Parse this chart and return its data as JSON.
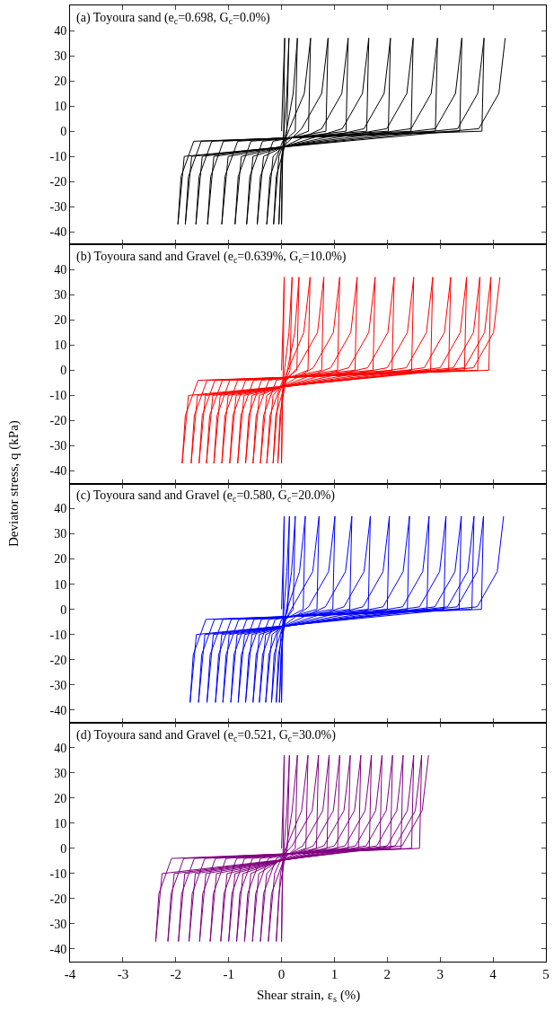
{
  "chart_data": [
    {
      "type": "line",
      "title": "(a) Toyoura sand (e$_{c}$=0.698, G$_{c}$=0.0%)",
      "xlim": [
        -4,
        5
      ],
      "xticks": [
        -4,
        -3,
        -2,
        -1,
        0,
        1,
        2,
        3,
        4,
        5
      ],
      "ylim": [
        -45,
        50
      ],
      "yticks": [
        -40,
        -30,
        -20,
        -10,
        0,
        10,
        20,
        30,
        40
      ],
      "tick_labels": "y",
      "series": [
        {
          "color": "#000000",
          "x": [
            0,
            0.03,
            0.06,
            0.04,
            0.02,
            0.01,
            0,
            0.02,
            0.05,
            0.1,
            0.14,
            0.1,
            0.05,
            -0.02,
            -0.05,
            0,
            0.1,
            0.22,
            0.3,
            0.26,
            0.1,
            -0.1,
            -0.15,
            -0.05,
            0.15,
            0.43,
            0.55,
            0.51,
            0.02,
            -0.22,
            -0.28,
            -0.16,
            0.38,
            0.76,
            0.88,
            0.84,
            -0.16,
            -0.4,
            -0.46,
            -0.34,
            0.76,
            1.14,
            1.26,
            1.22,
            -0.36,
            -0.6,
            -0.66,
            -0.54,
            1.15,
            1.53,
            1.65,
            1.61,
            -0.58,
            -0.82,
            -0.88,
            -0.76,
            1.56,
            1.94,
            2.06,
            2.02,
            -0.83,
            -1.07,
            -1.13,
            -1.01,
            1.99,
            2.37,
            2.49,
            2.45,
            -1.1,
            -1.34,
            -1.4,
            -1.28,
            2.45,
            2.83,
            2.95,
            2.91,
            -1.32,
            -1.56,
            -1.62,
            -1.5,
            2.91,
            3.29,
            3.41,
            3.37,
            -1.52,
            -1.76,
            -1.82,
            -1.7,
            3.33,
            3.71,
            3.83,
            3.79,
            -1.66,
            -1.9,
            -1.96,
            -1.84,
            3.73,
            4.11,
            4.23
          ],
          "values": [
            0,
            20,
            37,
            0,
            -10,
            -20,
            -37,
            -10,
            1,
            15,
            37,
            0,
            -4,
            -18,
            -37,
            -10,
            1,
            15,
            37,
            0,
            -3,
            -18,
            -37,
            -10,
            1,
            15,
            37,
            0,
            -4,
            -18,
            -37,
            -10,
            1,
            15,
            37,
            0,
            -4,
            -18,
            -37,
            -10,
            1,
            15,
            37,
            0,
            -4,
            -18,
            -37,
            -10,
            1,
            15,
            37,
            0,
            -4,
            -18,
            -37,
            -10,
            1,
            15,
            37,
            0,
            -4,
            -18,
            -37,
            -10,
            1,
            15,
            37,
            0,
            -4,
            -18,
            -37,
            -10,
            1,
            15,
            37,
            0,
            -4,
            -18,
            -37,
            -10,
            1,
            15,
            37,
            0,
            -4,
            -18,
            -37,
            -10,
            1,
            15,
            37,
            0,
            -4,
            -18,
            -37,
            -10,
            1,
            15,
            37
          ]
        }
      ]
    },
    {
      "type": "line",
      "title": "(b) Toyoura sand and Gravel (e$_{c}$=0.639%, G$_{c}$=10.0%)",
      "ylabel": "Deviator stress, q (kPa)",
      "xlim": [
        -4,
        5
      ],
      "xticks": [
        -4,
        -3,
        -2,
        -1,
        0,
        1,
        2,
        3,
        4,
        5
      ],
      "ylim": [
        -45,
        50
      ],
      "yticks": [
        -40,
        -30,
        -20,
        -10,
        0,
        10,
        20,
        30,
        40
      ],
      "tick_labels": "y",
      "series": [
        {
          "color": "#ff0000",
          "x": [
            0,
            0.03,
            0.05,
            0.03,
            0.02,
            0.01,
            0,
            0.02,
            0.06,
            0.14,
            0.2,
            0.16,
            0.08,
            -0.03,
            -0.07,
            0.01,
            0.12,
            0.25,
            0.33,
            0.29,
            0.1,
            -0.11,
            -0.16,
            -0.06,
            0.14,
            0.42,
            0.54,
            0.5,
            0.02,
            -0.22,
            -0.28,
            -0.16,
            0.3,
            0.68,
            0.8,
            0.76,
            -0.1,
            -0.34,
            -0.4,
            -0.28,
            0.6,
            0.98,
            1.1,
            1.06,
            -0.24,
            -0.48,
            -0.54,
            -0.42,
            0.93,
            1.31,
            1.43,
            1.39,
            -0.38,
            -0.62,
            -0.68,
            -0.56,
            1.27,
            1.65,
            1.77,
            1.73,
            -0.53,
            -0.77,
            -0.83,
            -0.71,
            1.63,
            2.01,
            2.13,
            2.09,
            -0.68,
            -0.92,
            -0.98,
            -0.86,
            2.0,
            2.38,
            2.5,
            2.46,
            -0.83,
            -1.07,
            -1.13,
            -1.01,
            2.36,
            2.74,
            2.86,
            2.82,
            -0.98,
            -1.22,
            -1.28,
            -1.16,
            2.7,
            3.08,
            3.2,
            3.16,
            -1.12,
            -1.36,
            -1.42,
            -1.3,
            3.0,
            3.38,
            3.5,
            3.46,
            -1.26,
            -1.5,
            -1.56,
            -1.44,
            3.25,
            3.63,
            3.75,
            3.71,
            -1.41,
            -1.65,
            -1.71,
            -1.59,
            3.46,
            3.84,
            3.96,
            3.92,
            -1.58,
            -1.82,
            -1.88,
            -1.76,
            3.63,
            4.01,
            4.13
          ],
          "values": [
            0,
            20,
            37,
            0,
            -10,
            -20,
            -37,
            -10,
            1,
            15,
            37,
            0,
            -4,
            -18,
            -37,
            -10,
            1,
            15,
            37,
            0,
            -3,
            -18,
            -37,
            -10,
            1,
            15,
            37,
            0,
            -4,
            -18,
            -37,
            -10,
            1,
            15,
            37,
            0,
            -4,
            -18,
            -37,
            -10,
            1,
            15,
            37,
            0,
            -4,
            -18,
            -37,
            -10,
            1,
            15,
            37,
            0,
            -4,
            -18,
            -37,
            -10,
            1,
            15,
            37,
            0,
            -4,
            -18,
            -37,
            -10,
            1,
            15,
            37,
            0,
            -4,
            -18,
            -37,
            -10,
            1,
            15,
            37,
            0,
            -4,
            -18,
            -37,
            -10,
            1,
            15,
            37,
            0,
            -4,
            -18,
            -37,
            -10,
            1,
            15,
            37,
            0,
            -4,
            -18,
            -37,
            -10,
            1,
            15,
            37,
            0,
            -4,
            -18,
            -37,
            -10,
            1,
            15,
            37,
            0,
            -4,
            -18,
            -37,
            -10,
            1,
            15,
            37,
            0,
            -4,
            -18,
            -37,
            -10,
            1,
            15,
            37
          ]
        }
      ]
    },
    {
      "type": "line",
      "title": "(c) Toyoura sand and Gravel (e$_{c}$=0.580, G$_{c}$=20.0%)",
      "xlim": [
        -4,
        5
      ],
      "xticks": [
        -4,
        -3,
        -2,
        -1,
        0,
        1,
        2,
        3,
        4,
        5
      ],
      "ylim": [
        -45,
        50
      ],
      "yticks": [
        -40,
        -30,
        -20,
        -10,
        0,
        10,
        20,
        30,
        40
      ],
      "tick_labels": "y",
      "series": [
        {
          "color": "#0000ff",
          "x": [
            0,
            0.03,
            0.05,
            0.03,
            0.02,
            0.01,
            0,
            0.02,
            0.05,
            0.1,
            0.15,
            0.12,
            0.06,
            -0.01,
            -0.04,
            0.02,
            0.1,
            0.19,
            0.26,
            0.22,
            0.08,
            -0.06,
            -0.1,
            -0.01,
            0.12,
            0.34,
            0.45,
            0.41,
            0.06,
            -0.14,
            -0.19,
            -0.08,
            0.21,
            0.59,
            0.71,
            0.67,
            0,
            -0.24,
            -0.3,
            -0.18,
            0.51,
            0.89,
            1.01,
            0.97,
            -0.12,
            -0.36,
            -0.42,
            -0.3,
            0.83,
            1.21,
            1.33,
            1.29,
            -0.24,
            -0.48,
            -0.54,
            -0.42,
            1.18,
            1.56,
            1.68,
            1.64,
            -0.38,
            -0.62,
            -0.68,
            -0.56,
            1.54,
            1.92,
            2.04,
            2.0,
            -0.52,
            -0.76,
            -0.82,
            -0.7,
            1.92,
            2.3,
            2.42,
            2.38,
            -0.66,
            -0.9,
            -0.96,
            -0.84,
            2.29,
            2.67,
            2.79,
            2.75,
            -0.81,
            -1.05,
            -1.11,
            -0.99,
            2.61,
            2.99,
            3.11,
            3.07,
            -0.95,
            -1.19,
            -1.25,
            -1.13,
            2.9,
            3.28,
            3.4,
            3.36,
            -1.11,
            -1.35,
            -1.41,
            -1.29,
            3.14,
            3.52,
            3.64,
            3.6,
            -1.27,
            -1.51,
            -1.57,
            -1.45,
            3.32,
            3.7,
            3.82,
            3.78,
            -1.43,
            -1.67,
            -1.73,
            -1.61,
            3.7,
            4.08,
            4.2
          ],
          "values": [
            0,
            20,
            37,
            0,
            -10,
            -20,
            -37,
            -10,
            1,
            15,
            37,
            0,
            -4,
            -18,
            -37,
            -10,
            1,
            15,
            37,
            0,
            -4,
            -18,
            -37,
            -10,
            1,
            15,
            37,
            0,
            -4,
            -18,
            -37,
            -10,
            1,
            15,
            37,
            0,
            -4,
            -18,
            -37,
            -10,
            1,
            15,
            37,
            0,
            -4,
            -18,
            -37,
            -10,
            1,
            15,
            37,
            0,
            -4,
            -18,
            -37,
            -10,
            1,
            15,
            37,
            0,
            -4,
            -18,
            -37,
            -10,
            1,
            15,
            37,
            0,
            -4,
            -18,
            -37,
            -10,
            1,
            15,
            37,
            0,
            -4,
            -18,
            -37,
            -10,
            1,
            15,
            37,
            0,
            -4,
            -18,
            -37,
            -10,
            1,
            15,
            37,
            0,
            -4,
            -18,
            -37,
            -10,
            1,
            15,
            37,
            0,
            -4,
            -18,
            -37,
            -10,
            1,
            15,
            37,
            0,
            -4,
            -18,
            -37,
            -10,
            1,
            15,
            37,
            0,
            -4,
            -18,
            -37,
            -10,
            1,
            15,
            37
          ]
        }
      ]
    },
    {
      "type": "line",
      "title": "(d) Toyoura sand and Gravel (e$_{c}$=0.521, G$_{c}$=30.0%)",
      "xlabel": "Shear strain, ε$_{s}$ (%)",
      "xlim": [
        -4,
        5
      ],
      "xticks": [
        -4,
        -3,
        -2,
        -1,
        0,
        1,
        2,
        3,
        4,
        5
      ],
      "ylim": [
        -45,
        50
      ],
      "yticks": [
        -40,
        -30,
        -20,
        -10,
        0,
        10,
        20,
        30,
        40
      ],
      "series": [
        {
          "color": "#800080",
          "x": [
            0,
            0.03,
            0.05,
            0.03,
            0.02,
            0.01,
            0,
            0.02,
            0.05,
            0.1,
            0.15,
            0.11,
            0.06,
            -0.05,
            -0.1,
            -0.02,
            0.1,
            0.2,
            0.3,
            0.26,
            0.05,
            -0.19,
            -0.25,
            -0.13,
            0.1,
            0.38,
            0.5,
            0.46,
            -0.1,
            -0.34,
            -0.4,
            -0.28,
            0.2,
            0.58,
            0.7,
            0.66,
            -0.25,
            -0.49,
            -0.55,
            -0.43,
            0.4,
            0.78,
            0.9,
            0.86,
            -0.4,
            -0.64,
            -0.7,
            -0.58,
            0.6,
            0.98,
            1.1,
            1.06,
            -0.55,
            -0.79,
            -0.85,
            -0.73,
            0.8,
            1.18,
            1.3,
            1.26,
            -0.7,
            -0.94,
            -1.0,
            -0.88,
            1.0,
            1.38,
            1.5,
            1.46,
            -0.85,
            -1.09,
            -1.15,
            -1.03,
            1.2,
            1.58,
            1.7,
            1.66,
            -1.05,
            -1.29,
            -1.35,
            -1.23,
            1.4,
            1.78,
            1.9,
            1.86,
            -1.25,
            -1.49,
            -1.55,
            -1.43,
            1.6,
            1.98,
            2.1,
            2.06,
            -1.45,
            -1.69,
            -1.75,
            -1.63,
            1.8,
            2.18,
            2.3,
            2.26,
            -1.65,
            -1.89,
            -1.95,
            -1.83,
            2.0,
            2.38,
            2.5,
            2.46,
            -1.85,
            -2.09,
            -2.15,
            -2.03,
            2.15,
            2.53,
            2.65,
            2.61,
            -2.08,
            -2.32,
            -2.38,
            -2.26,
            2.28,
            2.66,
            2.78
          ],
          "values": [
            0,
            20,
            37,
            0,
            -10,
            -20,
            -37,
            -10,
            1,
            15,
            37,
            0,
            -4,
            -18,
            -37,
            -10,
            1,
            15,
            37,
            0,
            -4,
            -18,
            -37,
            -10,
            1,
            15,
            37,
            0,
            -4,
            -18,
            -37,
            -10,
            1,
            15,
            37,
            0,
            -4,
            -18,
            -37,
            -10,
            1,
            15,
            37,
            0,
            -4,
            -18,
            -37,
            -10,
            1,
            15,
            37,
            0,
            -4,
            -18,
            -37,
            -10,
            1,
            15,
            37,
            0,
            -4,
            -18,
            -37,
            -10,
            1,
            15,
            37,
            0,
            -4,
            -18,
            -37,
            -10,
            1,
            15,
            37,
            0,
            -4,
            -18,
            -37,
            -10,
            1,
            15,
            37,
            0,
            -4,
            -18,
            -37,
            -10,
            1,
            15,
            37,
            0,
            -4,
            -18,
            -37,
            -10,
            1,
            15,
            37,
            0,
            -4,
            -18,
            -37,
            -10,
            1,
            15,
            37,
            0,
            -4,
            -18,
            -37,
            -10,
            1,
            15,
            37,
            0,
            -4,
            -18,
            -37,
            -10,
            1,
            15,
            37
          ]
        }
      ]
    }
  ]
}
